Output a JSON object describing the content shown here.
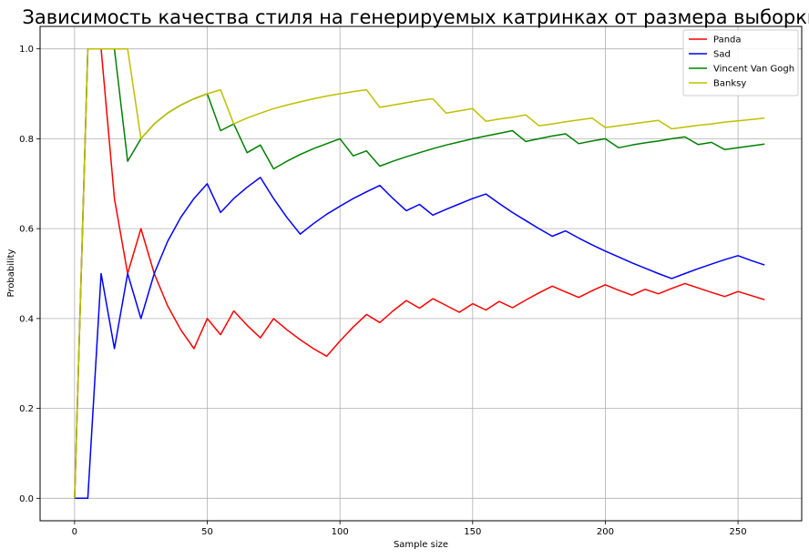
{
  "chart_data": {
    "type": "line",
    "title": "Зависимость качества стиля на генерируемых катринках от размера выборки",
    "xlabel": "Sample size",
    "ylabel": "Probability",
    "xlim": [
      -13,
      274
    ],
    "ylim": [
      -0.05,
      1.05
    ],
    "xticks": [
      0,
      50,
      100,
      150,
      200,
      250
    ],
    "xtick_labels": [
      "0",
      "50",
      "100",
      "150",
      "200",
      "250"
    ],
    "yticks": [
      0.0,
      0.2,
      0.4,
      0.6,
      0.8,
      1.0
    ],
    "ytick_labels": [
      "0.0",
      "0.2",
      "0.4",
      "0.6",
      "0.8",
      "1.0"
    ],
    "grid": true,
    "legend_position": "top-right",
    "x": [
      0,
      5,
      10,
      15,
      20,
      25,
      30,
      35,
      40,
      45,
      50,
      55,
      60,
      65,
      70,
      75,
      80,
      85,
      90,
      95,
      100,
      105,
      110,
      115,
      120,
      125,
      130,
      135,
      140,
      145,
      150,
      155,
      160,
      165,
      170,
      175,
      180,
      185,
      190,
      195,
      200,
      205,
      210,
      215,
      220,
      225,
      230,
      235,
      240,
      245,
      250,
      255,
      260
    ],
    "series": [
      {
        "name": "Panda",
        "color": "#ff0000",
        "values": [
          0,
          1.0,
          1.0,
          0.667,
          0.5,
          0.6,
          0.5,
          0.429,
          0.375,
          0.333,
          0.4,
          0.364,
          0.417,
          0.385,
          0.357,
          0.4,
          0.375,
          0.353,
          0.333,
          0.316,
          0.35,
          0.381,
          0.409,
          0.391,
          0.417,
          0.44,
          0.423,
          0.444,
          0.429,
          0.414,
          0.433,
          0.419,
          0.438,
          0.424,
          0.441,
          0.457,
          0.472,
          0.459,
          0.447,
          0.462,
          0.475,
          0.463,
          0.452,
          0.465,
          0.455,
          0.467,
          0.478,
          0.468,
          0.458,
          0.449,
          0.46,
          0.451,
          0.442
        ]
      },
      {
        "name": "Sad",
        "color": "#0000ff",
        "values": [
          0,
          0,
          0.5,
          0.333,
          0.5,
          0.4,
          0.5,
          0.571,
          0.625,
          0.667,
          0.7,
          0.636,
          0.667,
          0.692,
          0.714,
          0.667,
          0.625,
          0.588,
          0.611,
          0.632,
          0.65,
          0.667,
          0.682,
          0.696,
          0.667,
          0.64,
          0.654,
          0.63,
          0.643,
          0.655,
          0.667,
          0.677,
          0.656,
          0.636,
          0.618,
          0.6,
          0.583,
          0.595,
          0.579,
          0.564,
          0.55,
          0.537,
          0.524,
          0.512,
          0.5,
          0.489,
          0.5,
          0.511,
          0.521,
          0.531,
          0.54,
          0.529,
          0.519
        ]
      },
      {
        "name": "Vincent Van Gogh",
        "color": "#008000",
        "values": [
          0,
          1.0,
          1.0,
          1.0,
          0.75,
          0.8,
          0.833,
          0.857,
          0.875,
          0.889,
          0.9,
          0.818,
          0.833,
          0.769,
          0.786,
          0.733,
          0.75,
          0.765,
          0.778,
          0.789,
          0.8,
          0.762,
          0.773,
          0.739,
          0.75,
          0.76,
          0.769,
          0.778,
          0.786,
          0.793,
          0.8,
          0.806,
          0.812,
          0.818,
          0.794,
          0.8,
          0.806,
          0.811,
          0.789,
          0.795,
          0.8,
          0.78,
          0.786,
          0.791,
          0.795,
          0.8,
          0.804,
          0.787,
          0.792,
          0.776,
          0.78,
          0.784,
          0.788
        ]
      },
      {
        "name": "Banksy",
        "color": "#bfbf00",
        "values": [
          0,
          1.0,
          1.0,
          1.0,
          1.0,
          0.8,
          0.833,
          0.857,
          0.875,
          0.889,
          0.9,
          0.909,
          0.833,
          0.846,
          0.857,
          0.867,
          0.875,
          0.882,
          0.889,
          0.895,
          0.9,
          0.905,
          0.909,
          0.87,
          0.875,
          0.88,
          0.885,
          0.889,
          0.857,
          0.862,
          0.867,
          0.839,
          0.844,
          0.848,
          0.853,
          0.829,
          0.833,
          0.838,
          0.842,
          0.846,
          0.825,
          0.829,
          0.833,
          0.837,
          0.841,
          0.822,
          0.826,
          0.83,
          0.833,
          0.837,
          0.84,
          0.843,
          0.846
        ]
      }
    ]
  }
}
